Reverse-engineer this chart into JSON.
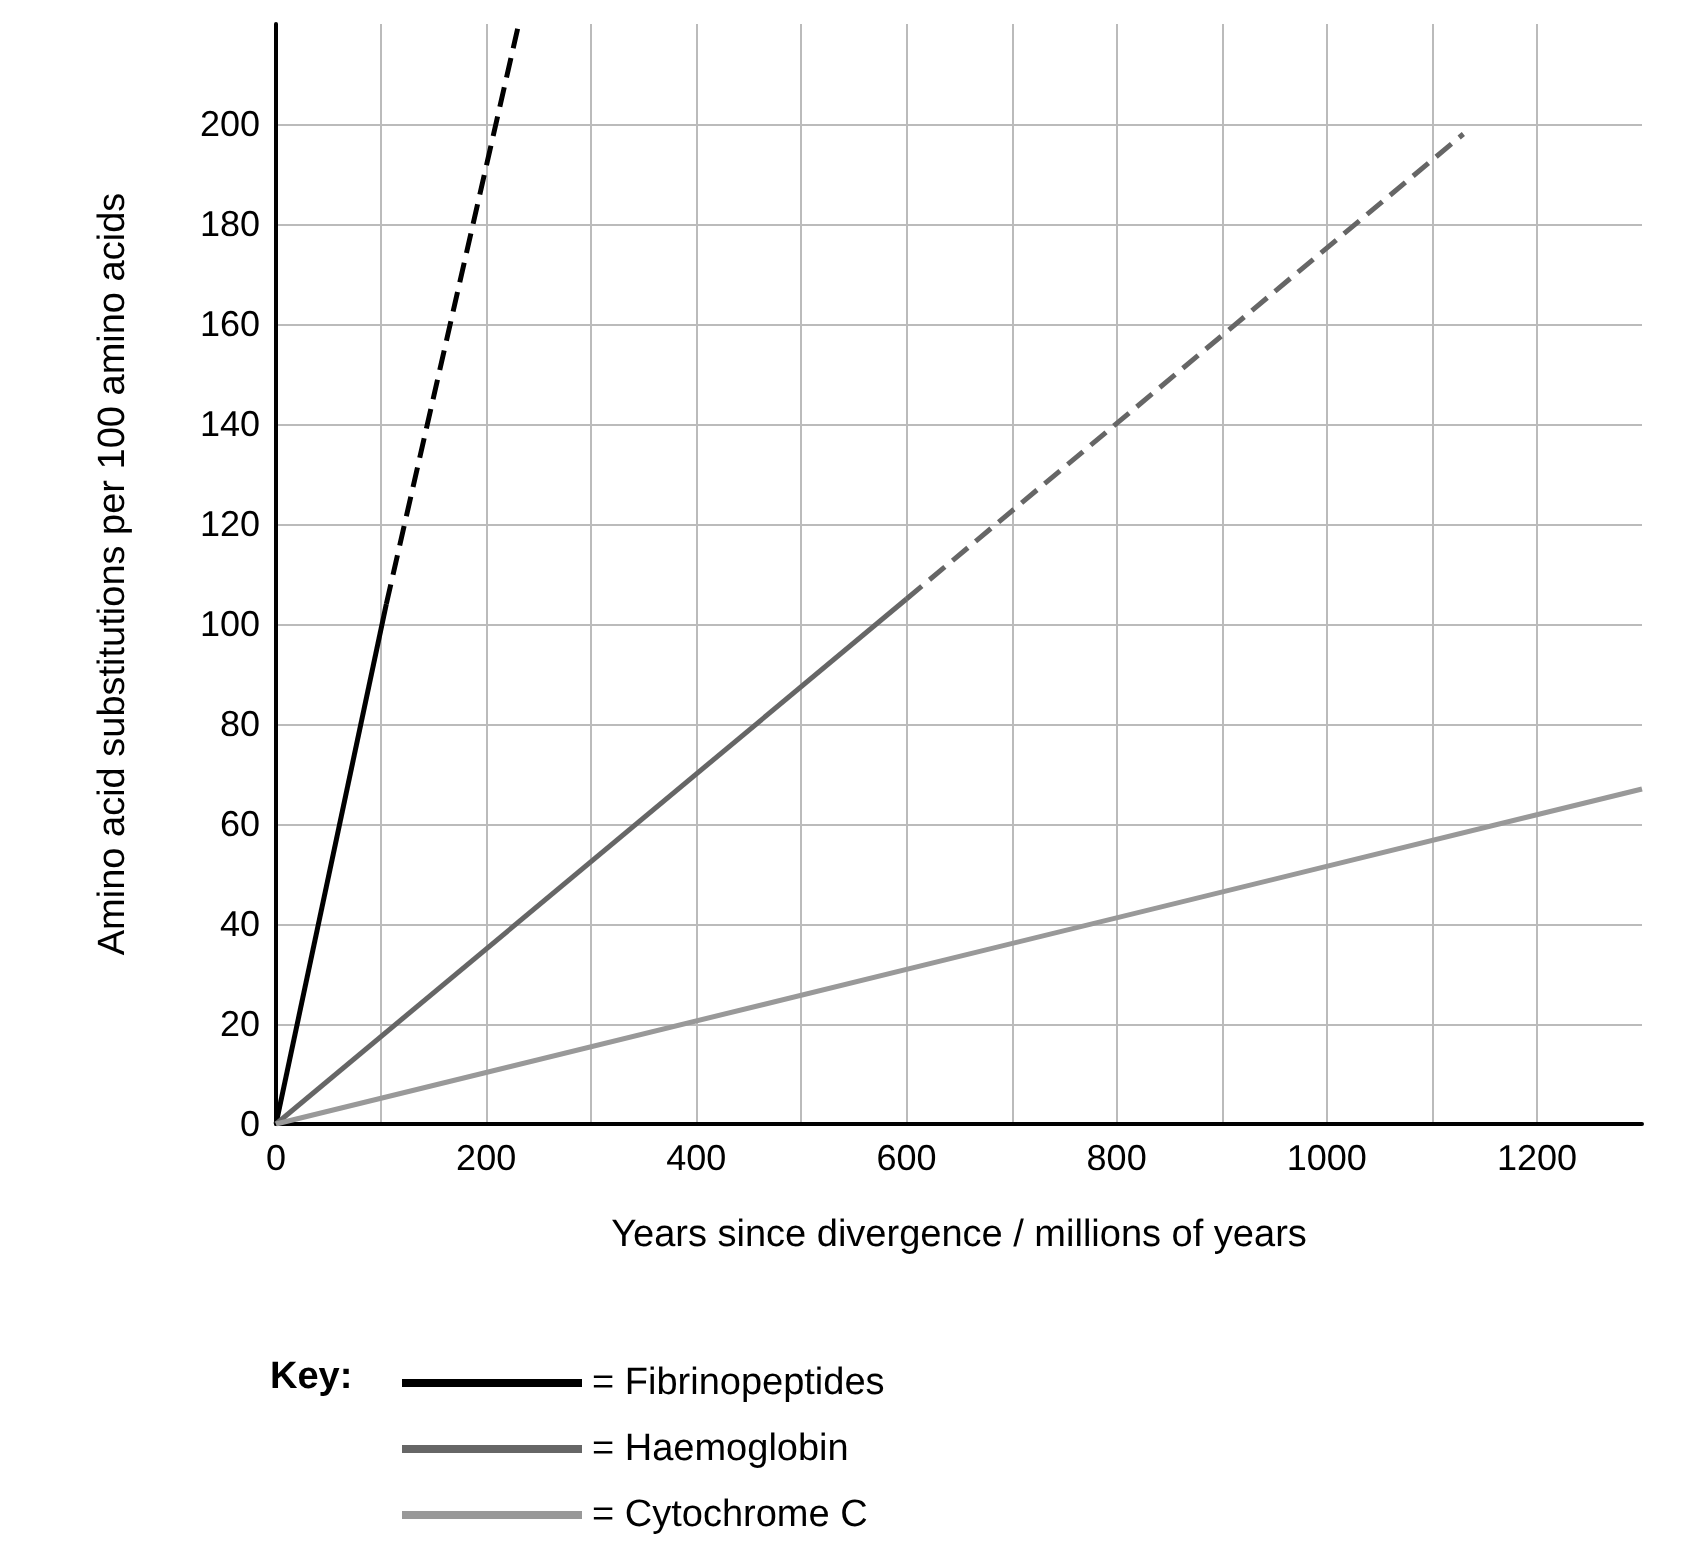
{
  "chart_data": {
    "type": "line",
    "xlabel": "Years since divergence / millions of years",
    "ylabel": "Amino acid substitutions per 100 amino acids",
    "legend_title": "Key:",
    "xlim": [
      0,
      1300
    ],
    "xticks": [
      0,
      {
        "value": 100,
        "label": null
      },
      200,
      {
        "value": 300,
        "label": null
      },
      400,
      {
        "value": 500,
        "label": null
      },
      600,
      {
        "value": 700,
        "label": null
      },
      800,
      {
        "value": 900,
        "label": null
      },
      1000,
      {
        "value": 1100,
        "label": null
      },
      1200
    ],
    "ylim": [
      0,
      220
    ],
    "yticks": [
      0,
      20,
      40,
      60,
      80,
      100,
      120,
      140,
      160,
      180,
      200
    ],
    "grid": true,
    "legend": "bottom",
    "marker": "none",
    "series": [
      {
        "name": "= Fibrinopeptides",
        "color": "#000000",
        "x": [
          0,
          105
        ],
        "values": [
          0,
          104
        ],
        "line_style": "solid"
      },
      {
        "name": "= Haemoglobin",
        "color": "#666666",
        "x": [
          0,
          600
        ],
        "values": [
          0,
          105
        ],
        "line_style": "solid"
      },
      {
        "name": "= Cytochrome C",
        "color": "#999999",
        "x": [
          0,
          1300
        ],
        "values": [
          0,
          67
        ],
        "line_style": "solid"
      },
      {
        "color": "#000000",
        "x": [
          105,
          231
        ],
        "values": [
          104,
          220
        ],
        "line_style": "dashed"
      },
      {
        "color": "#666666",
        "x": [
          600,
          1130
        ],
        "values": [
          105,
          198
        ],
        "line_style": "dashed"
      }
    ]
  }
}
